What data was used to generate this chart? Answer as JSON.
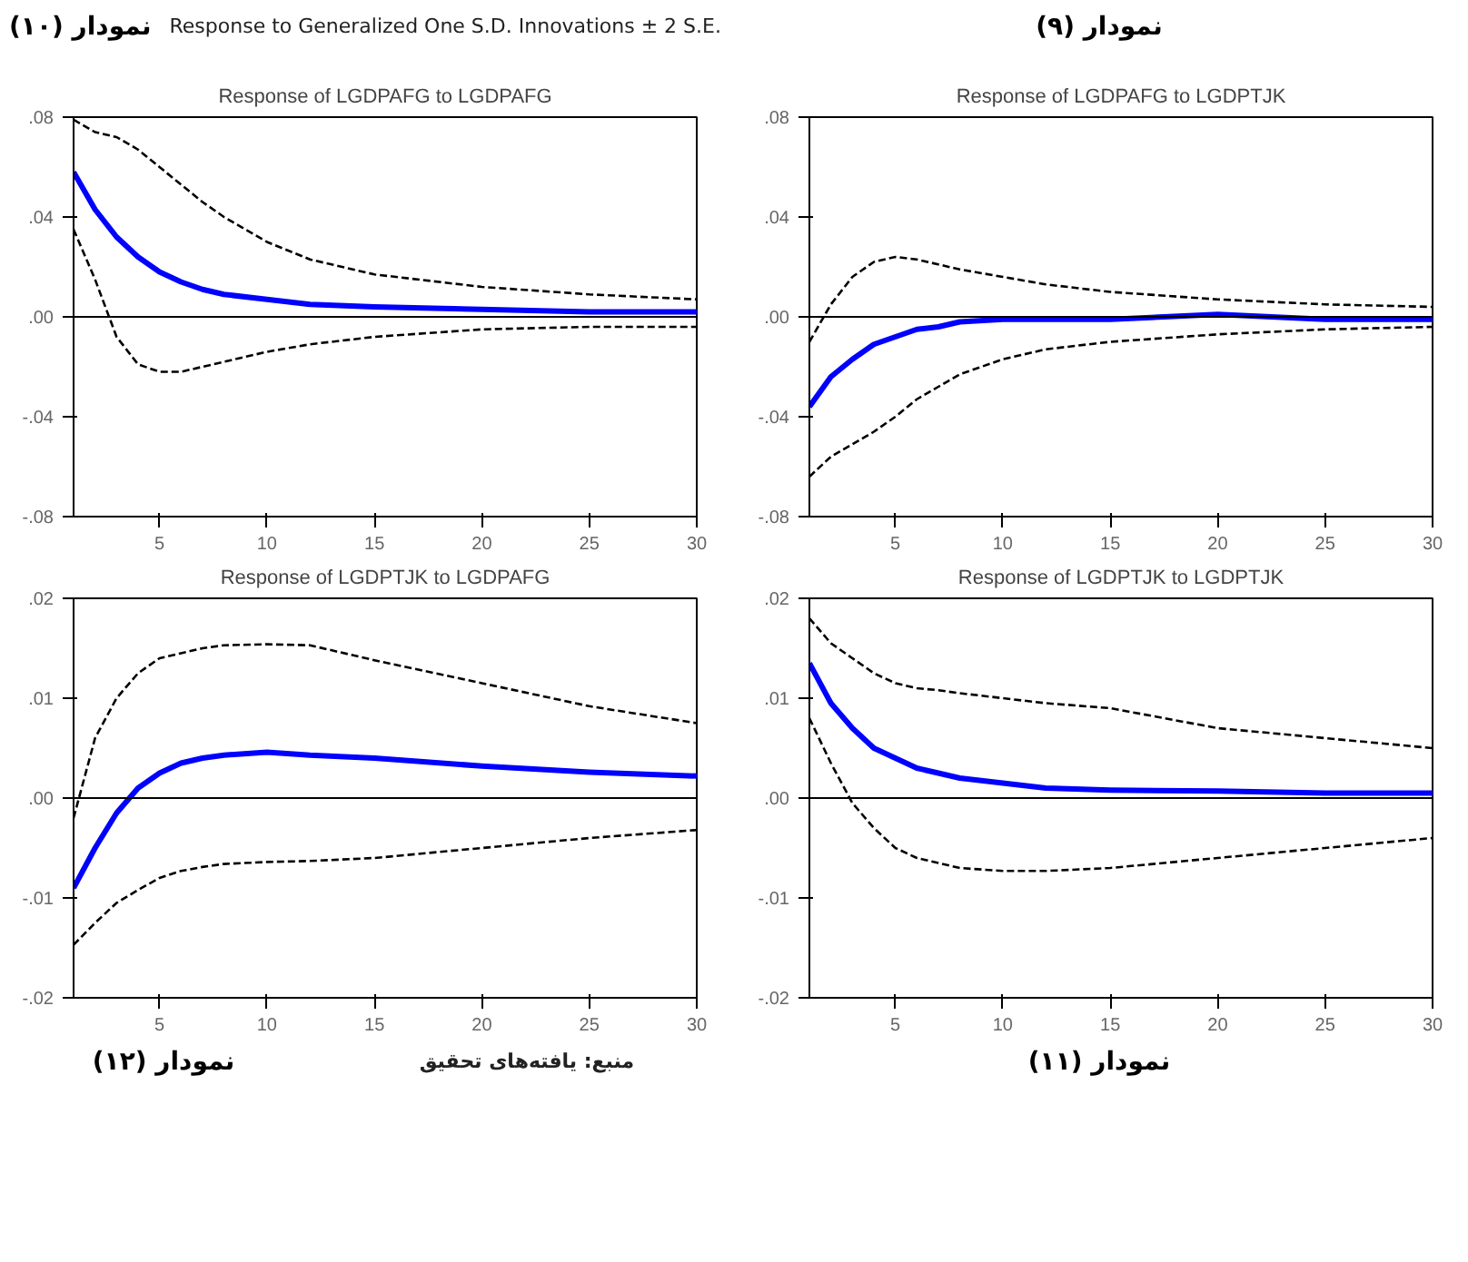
{
  "chart_data": [
    {
      "type": "line",
      "title": "Response of LGDPAFG to LGDPAFG",
      "annotations": [
        "نمودار (۱۰)",
        "Response to Generalized One S.D. Innovations ± 2 S.E."
      ],
      "x": [
        1,
        2,
        3,
        4,
        5,
        6,
        7,
        8,
        10,
        12,
        15,
        20,
        25,
        30
      ],
      "series": [
        {
          "color": "#0000ff",
          "line_style": "solid",
          "values": [
            0.058,
            0.043,
            0.032,
            0.024,
            0.018,
            0.014,
            0.011,
            0.009,
            0.007,
            0.005,
            0.004,
            0.003,
            0.002,
            0.002
          ]
        },
        {
          "color": "#000000",
          "line_style": "dashed",
          "values": [
            0.079,
            0.074,
            0.072,
            0.067,
            0.06,
            0.053,
            0.046,
            0.04,
            0.03,
            0.023,
            0.017,
            0.012,
            0.009,
            0.007
          ]
        },
        {
          "color": "#000000",
          "line_style": "dashed",
          "values": [
            0.035,
            0.015,
            -0.008,
            -0.019,
            -0.022,
            -0.022,
            -0.02,
            -0.018,
            -0.014,
            -0.011,
            -0.008,
            -0.005,
            -0.004,
            -0.004
          ]
        }
      ],
      "xlim": [
        1,
        30
      ],
      "xticks": [
        5,
        10,
        15,
        20,
        25,
        30
      ],
      "ylim": [
        -0.08,
        0.08
      ],
      "yticks": [
        {
          "value": -0.08,
          "label": "-.08"
        },
        {
          "value": -0.04,
          "label": "-.04"
        },
        {
          "value": 0,
          "label": ".00"
        },
        {
          "value": 0.04,
          "label": ".04"
        },
        {
          "value": 0.08,
          "label": ".08"
        }
      ],
      "ref_lines": [
        {
          "axis": "y",
          "value": 0,
          "color": "#000000"
        }
      ],
      "grid": false
    },
    {
      "type": "line",
      "title": "Response of LGDPAFG to LGDPTJK",
      "annotations": [
        "نمودار (۹)"
      ],
      "x": [
        1,
        2,
        3,
        4,
        5,
        6,
        7,
        8,
        10,
        12,
        15,
        20,
        25,
        30
      ],
      "series": [
        {
          "color": "#0000ff",
          "line_style": "solid",
          "values": [
            -0.036,
            -0.024,
            -0.017,
            -0.011,
            -0.008,
            -0.005,
            -0.004,
            -0.002,
            -0.001,
            -0.001,
            -0.001,
            0.001,
            -0.001,
            -0.001
          ]
        },
        {
          "color": "#000000",
          "line_style": "dashed",
          "values": [
            -0.01,
            0.005,
            0.016,
            0.022,
            0.024,
            0.023,
            0.021,
            0.019,
            0.016,
            0.013,
            0.01,
            0.007,
            0.005,
            0.004
          ]
        },
        {
          "color": "#000000",
          "line_style": "dashed",
          "values": [
            -0.064,
            -0.056,
            -0.051,
            -0.046,
            -0.04,
            -0.033,
            -0.028,
            -0.023,
            -0.017,
            -0.013,
            -0.01,
            -0.007,
            -0.005,
            -0.004
          ]
        }
      ],
      "xlim": [
        1,
        30
      ],
      "xticks": [
        5,
        10,
        15,
        20,
        25,
        30
      ],
      "ylim": [
        -0.08,
        0.08
      ],
      "yticks": [
        {
          "value": -0.08,
          "label": "-.08"
        },
        {
          "value": -0.04,
          "label": "-.04"
        },
        {
          "value": 0,
          "label": ".00"
        },
        {
          "value": 0.04,
          "label": ".04"
        },
        {
          "value": 0.08,
          "label": ".08"
        }
      ],
      "ref_lines": [
        {
          "axis": "y",
          "value": 0,
          "color": "#000000"
        }
      ],
      "grid": false
    },
    {
      "type": "line",
      "title": "Response of LGDPTJK to LGDPAFG",
      "annotations": [
        "نمودار (۱۲)",
        "منبع: یافته‌های تحقیق"
      ],
      "x": [
        1,
        2,
        3,
        4,
        5,
        6,
        7,
        8,
        10,
        12,
        15,
        20,
        25,
        30
      ],
      "series": [
        {
          "color": "#0000ff",
          "line_style": "solid",
          "values": [
            -0.009,
            -0.005,
            -0.0015,
            0.001,
            0.0025,
            0.0035,
            0.004,
            0.0043,
            0.0046,
            0.0043,
            0.004,
            0.0032,
            0.0026,
            0.0022
          ]
        },
        {
          "color": "#000000",
          "line_style": "dashed",
          "values": [
            -0.002,
            0.006,
            0.01,
            0.0125,
            0.014,
            0.0145,
            0.015,
            0.0153,
            0.0154,
            0.0153,
            0.0138,
            0.0115,
            0.0092,
            0.0075
          ]
        },
        {
          "color": "#000000",
          "line_style": "dashed",
          "values": [
            -0.0147,
            -0.0125,
            -0.0105,
            -0.0092,
            -0.008,
            -0.0073,
            -0.0069,
            -0.0066,
            -0.0064,
            -0.0063,
            -0.006,
            -0.005,
            -0.004,
            -0.0032
          ]
        }
      ],
      "xlim": [
        1,
        30
      ],
      "xticks": [
        5,
        10,
        15,
        20,
        25,
        30
      ],
      "ylim": [
        -0.02,
        0.02
      ],
      "yticks": [
        {
          "value": -0.02,
          "label": "-.02"
        },
        {
          "value": -0.01,
          "label": "-.01"
        },
        {
          "value": 0,
          "label": ".00"
        },
        {
          "value": 0.01,
          "label": ".01"
        },
        {
          "value": 0.02,
          "label": ".02"
        }
      ],
      "ref_lines": [
        {
          "axis": "y",
          "value": 0,
          "color": "#000000"
        }
      ],
      "grid": false
    },
    {
      "type": "line",
      "title": "Response of LGDPTJK to LGDPTJK",
      "annotations": [
        "نمودار (۱۱)"
      ],
      "x": [
        1,
        2,
        3,
        4,
        5,
        6,
        7,
        8,
        10,
        12,
        15,
        20,
        25,
        30
      ],
      "series": [
        {
          "color": "#0000ff",
          "line_style": "solid",
          "values": [
            0.0135,
            0.0095,
            0.007,
            0.005,
            0.004,
            0.003,
            0.0025,
            0.002,
            0.0015,
            0.001,
            0.0008,
            0.0007,
            0.0005,
            0.0005
          ]
        },
        {
          "color": "#000000",
          "line_style": "dashed",
          "values": [
            0.018,
            0.0155,
            0.014,
            0.0125,
            0.0115,
            0.011,
            0.0108,
            0.0105,
            0.01,
            0.0095,
            0.009,
            0.007,
            0.006,
            0.005
          ]
        },
        {
          "color": "#000000",
          "line_style": "dashed",
          "values": [
            0.008,
            0.0035,
            -0.0005,
            -0.003,
            -0.005,
            -0.006,
            -0.0065,
            -0.007,
            -0.0073,
            -0.0073,
            -0.007,
            -0.006,
            -0.005,
            -0.004
          ]
        }
      ],
      "xlim": [
        1,
        30
      ],
      "xticks": [
        5,
        10,
        15,
        20,
        25,
        30
      ],
      "ylim": [
        -0.02,
        0.02
      ],
      "yticks": [
        {
          "value": -0.02,
          "label": "-.02"
        },
        {
          "value": -0.01,
          "label": "-.01"
        },
        {
          "value": 0,
          "label": ".00"
        },
        {
          "value": 0.01,
          "label": ".01"
        },
        {
          "value": 0.02,
          "label": ".02"
        }
      ],
      "ref_lines": [
        {
          "axis": "y",
          "value": 0,
          "color": "#000000"
        }
      ],
      "grid": false
    }
  ]
}
